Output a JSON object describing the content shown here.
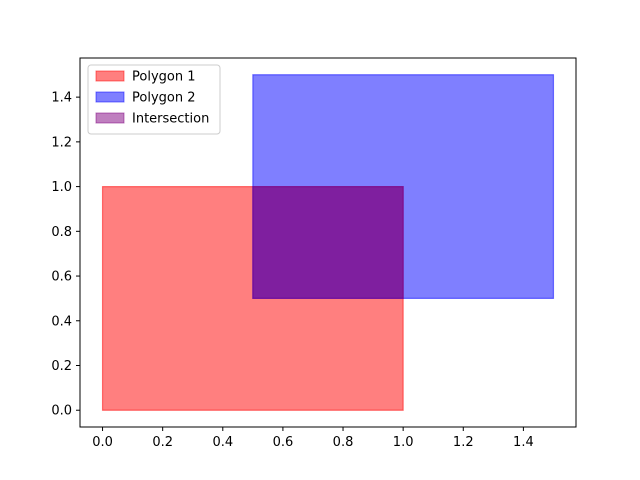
{
  "chart_data": {
    "type": "area",
    "title": "",
    "xlabel": "",
    "ylabel": "",
    "xlim": [
      -0.075,
      1.575
    ],
    "ylim": [
      -0.075,
      1.575
    ],
    "x_ticks": [
      0.0,
      0.2,
      0.4,
      0.6,
      0.8,
      1.0,
      1.2,
      1.4
    ],
    "x_tick_labels": [
      "0.0",
      "0.2",
      "0.4",
      "0.6",
      "0.8",
      "1.0",
      "1.2",
      "1.4"
    ],
    "y_ticks": [
      0.0,
      0.2,
      0.4,
      0.6,
      0.8,
      1.0,
      1.2,
      1.4
    ],
    "y_tick_labels": [
      "0.0",
      "0.2",
      "0.4",
      "0.6",
      "0.8",
      "1.0",
      "1.2",
      "1.4"
    ],
    "grid": false,
    "legend_position": "upper-left",
    "series": [
      {
        "name": "Polygon 1",
        "color": "#ff0000",
        "alpha": 0.5,
        "points": [
          [
            0,
            0
          ],
          [
            1,
            0
          ],
          [
            1,
            1
          ],
          [
            0,
            1
          ]
        ]
      },
      {
        "name": "Polygon 2",
        "color": "#0000ff",
        "alpha": 0.5,
        "points": [
          [
            0.5,
            0.5
          ],
          [
            1.5,
            0.5
          ],
          [
            1.5,
            1.5
          ],
          [
            0.5,
            1.5
          ]
        ]
      },
      {
        "name": "Intersection",
        "color": "#800080",
        "alpha": 0.5,
        "points": [
          [
            0.5,
            0.5
          ],
          [
            1,
            0.5
          ],
          [
            1,
            1
          ],
          [
            0.5,
            1
          ]
        ]
      }
    ]
  }
}
